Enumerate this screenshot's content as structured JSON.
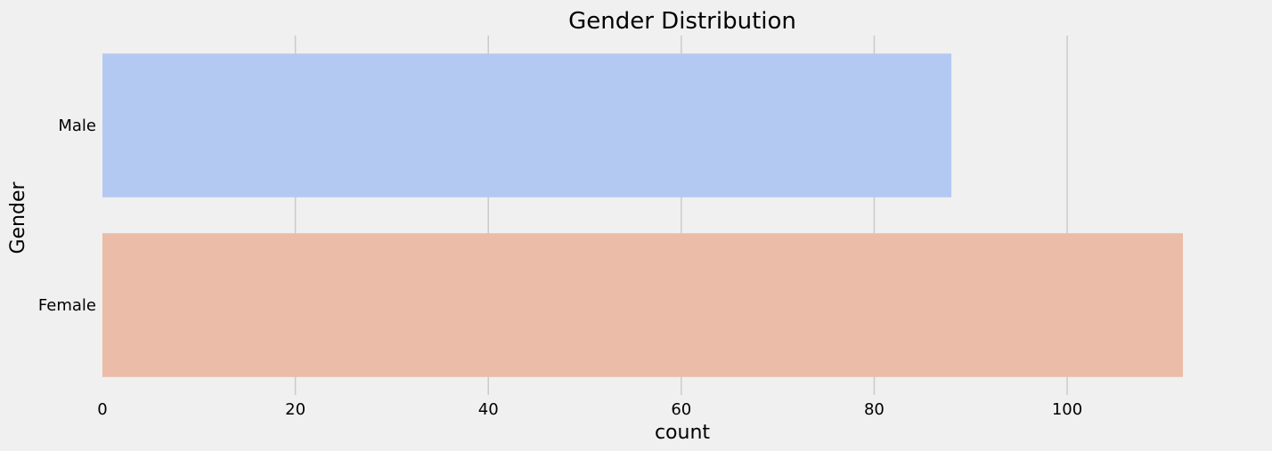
{
  "chart_data": {
    "type": "bar",
    "orientation": "horizontal",
    "title": "Gender Distribution",
    "xlabel": "count",
    "ylabel": "Gender",
    "categories": [
      "Male",
      "Female"
    ],
    "values": [
      88,
      112
    ],
    "colors": [
      "#b4c9f2",
      "#ebbca7"
    ],
    "xlim": [
      0,
      112
    ],
    "xticks": [
      0,
      20,
      40,
      60,
      80,
      100
    ],
    "grid": "x-axis",
    "background": "#f0f0f0"
  }
}
